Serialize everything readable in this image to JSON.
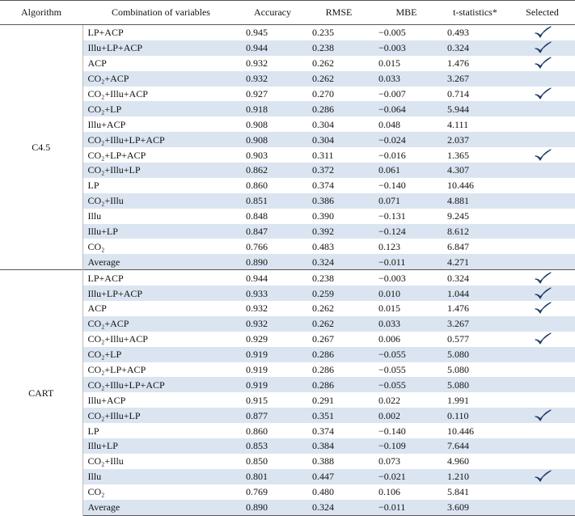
{
  "table": {
    "header": [
      "Algorithm",
      "Combination of variables",
      "Accuracy",
      "RMSE",
      "MBE",
      "t-statistics*",
      "Selected"
    ],
    "groups": [
      {
        "algorithm": "C4.5",
        "rows": [
          {
            "cells": [
              "LP+ACP",
              "0.945",
              "0.235",
              "−0.005",
              "0.493"
            ],
            "selected": true
          },
          {
            "cells": [
              "Illu+LP+ACP",
              "0.944",
              "0.238",
              "−0.003",
              "0.324"
            ],
            "selected": true
          },
          {
            "cells": [
              "ACP",
              "0.932",
              "0.262",
              "0.015",
              "1.476"
            ],
            "selected": true
          },
          {
            "cells": [
              "CO₂+ACP",
              "0.932",
              "0.262",
              "0.033",
              "3.267"
            ],
            "selected": false
          },
          {
            "cells": [
              "CO₂+Illu+ACP",
              "0.927",
              "0.270",
              "−0.007",
              "0.714"
            ],
            "selected": true
          },
          {
            "cells": [
              "CO₂+LP",
              "0.918",
              "0.286",
              "−0.064",
              "5.944"
            ],
            "selected": false
          },
          {
            "cells": [
              "Illu+ACP",
              "0.908",
              "0.304",
              "0.048",
              "4.111"
            ],
            "selected": false
          },
          {
            "cells": [
              "CO₂+Illu+LP+ACP",
              "0.908",
              "0.304",
              "−0.024",
              "2.037"
            ],
            "selected": false
          },
          {
            "cells": [
              "CO₂+LP+ACP",
              "0.903",
              "0.311",
              "−0.016",
              "1.365"
            ],
            "selected": true
          },
          {
            "cells": [
              "CO₂+Illu+LP",
              "0.862",
              "0.372",
              "0.061",
              "4.307"
            ],
            "selected": false
          },
          {
            "cells": [
              "LP",
              "0.860",
              "0.374",
              "−0.140",
              "10.446"
            ],
            "selected": false
          },
          {
            "cells": [
              "CO₂+Illu",
              "0.851",
              "0.386",
              "0.071",
              "4.881"
            ],
            "selected": false
          },
          {
            "cells": [
              "Illu",
              "0.848",
              "0.390",
              "−0.131",
              "9.245"
            ],
            "selected": false
          },
          {
            "cells": [
              "Illu+LP",
              "0.847",
              "0.392",
              "−0.124",
              "8.612"
            ],
            "selected": false
          },
          {
            "cells": [
              "CO₂",
              "0.766",
              "0.483",
              "0.123",
              "6.847"
            ],
            "selected": false
          },
          {
            "cells": [
              "Average",
              "0.890",
              "0.324",
              "−0.011",
              "4.271"
            ],
            "selected": false
          }
        ]
      },
      {
        "algorithm": "CART",
        "rows": [
          {
            "cells": [
              "LP+ACP",
              "0.944",
              "0.238",
              "−0.003",
              "0.324"
            ],
            "selected": true
          },
          {
            "cells": [
              "Illu+LP+ACP",
              "0.933",
              "0.259",
              "0.010",
              "1.044"
            ],
            "selected": true
          },
          {
            "cells": [
              "ACP",
              "0.932",
              "0.262",
              "0.015",
              "1.476"
            ],
            "selected": true
          },
          {
            "cells": [
              "CO₂+ACP",
              "0.932",
              "0.262",
              "0.033",
              "3.267"
            ],
            "selected": false
          },
          {
            "cells": [
              "CO₂+Illu+ACP",
              "0.929",
              "0.267",
              "0.006",
              "0.577"
            ],
            "selected": true
          },
          {
            "cells": [
              "CO₂+LP",
              "0.919",
              "0.286",
              "−0.055",
              "5.080"
            ],
            "selected": false
          },
          {
            "cells": [
              "CO₂+LP+ACP",
              "0.919",
              "0.286",
              "−0.055",
              "5.080"
            ],
            "selected": false
          },
          {
            "cells": [
              "CO₂+Illu+LP+ACP",
              "0.919",
              "0.286",
              "−0.055",
              "5.080"
            ],
            "selected": false
          },
          {
            "cells": [
              "Illu+ACP",
              "0.915",
              "0.291",
              "0.022",
              "1.991"
            ],
            "selected": false
          },
          {
            "cells": [
              "CO₂+Illu+LP",
              "0.877",
              "0.351",
              "0.002",
              "0.110"
            ],
            "selected": true
          },
          {
            "cells": [
              "LP",
              "0.860",
              "0.374",
              "−0.140",
              "10.446"
            ],
            "selected": false
          },
          {
            "cells": [
              "Illu+LP",
              "0.853",
              "0.384",
              "−0.109",
              "7.644"
            ],
            "selected": false
          },
          {
            "cells": [
              "CO₂+Illu",
              "0.850",
              "0.388",
              "0.073",
              "4.960"
            ],
            "selected": false
          },
          {
            "cells": [
              "Illu",
              "0.801",
              "0.447",
              "−0.021",
              "1.210"
            ],
            "selected": true
          },
          {
            "cells": [
              "CO₂",
              "0.769",
              "0.480",
              "0.106",
              "5.841"
            ],
            "selected": false
          },
          {
            "cells": [
              "Average",
              "0.890",
              "0.324",
              "−0.011",
              "3.609"
            ],
            "selected": false
          }
        ]
      }
    ]
  }
}
